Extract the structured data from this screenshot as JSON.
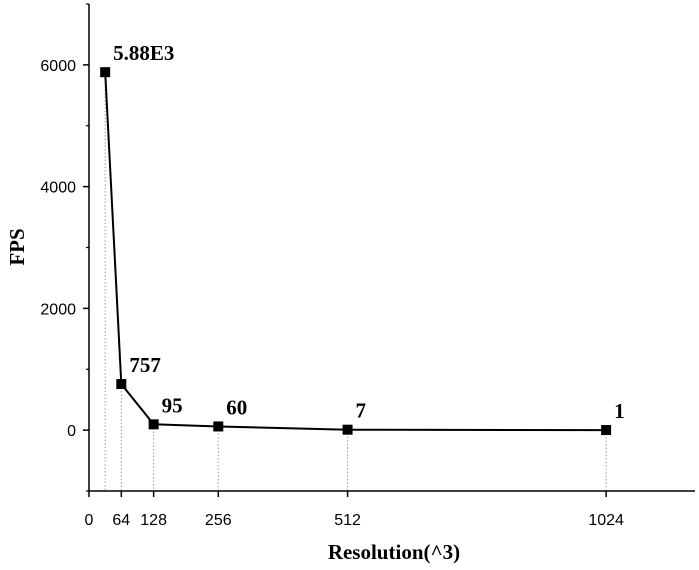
{
  "chart_data": {
    "type": "line",
    "xlabel": "Resolution(^3)",
    "ylabel": "FPS",
    "xlim": [
      0,
      1200
    ],
    "ylim": [
      -1000,
      7000
    ],
    "x_ticks": [
      {
        "value": 0,
        "label": "0"
      },
      {
        "value": 64,
        "label": "64"
      },
      {
        "value": 128,
        "label": "128"
      },
      {
        "value": 256,
        "label": "256"
      },
      {
        "value": 512,
        "label": "512"
      },
      {
        "value": 1024,
        "label": "1024"
      }
    ],
    "y_ticks": [
      {
        "value": 0,
        "label": "0"
      },
      {
        "value": 2000,
        "label": "2000"
      },
      {
        "value": 4000,
        "label": "4000"
      },
      {
        "value": 6000,
        "label": "6000"
      }
    ],
    "series": [
      {
        "x": [
          32,
          64,
          128,
          256,
          512,
          1024
        ],
        "y": [
          5880,
          757,
          95,
          60,
          7,
          1
        ],
        "labels": [
          "5.88E3",
          "757",
          "95",
          "60",
          "7",
          "1"
        ]
      }
    ],
    "marker": "square",
    "drop_lines": true,
    "grid": false,
    "line_color": "#000000",
    "drop_line_color": "#9a9a9a"
  }
}
